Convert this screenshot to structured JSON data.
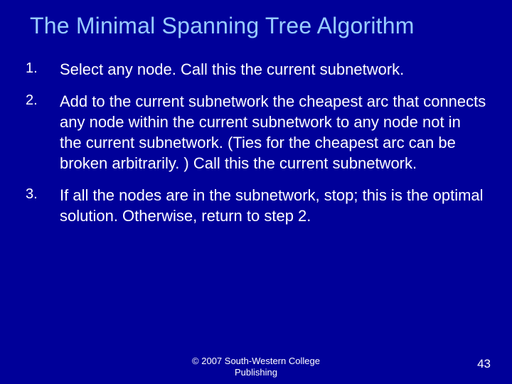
{
  "slide": {
    "title": "The Minimal Spanning Tree Algorithm",
    "background_color": "#000099",
    "title_color": "#99ccff",
    "text_color": "#ffffff",
    "title_fontsize": 32,
    "body_fontsize": 22,
    "items": [
      {
        "num": "1.",
        "text": "Select any node.  Call this the current subnetwork."
      },
      {
        "num": "2.",
        "text": "Add to the current subnetwork the cheapest arc that connects any node within the current subnetwork to any node not in the current subnetwork. (Ties for the cheapest arc can be broken arbitrarily. ) Call this the current subnetwork."
      },
      {
        "num": "3.",
        "text": "If all the nodes are in the subnetwork, stop; this is the optimal solution. Otherwise, return to step 2."
      }
    ],
    "footer": {
      "copyright": "© 2007 South-Western College Publishing",
      "page_number": "43"
    }
  }
}
